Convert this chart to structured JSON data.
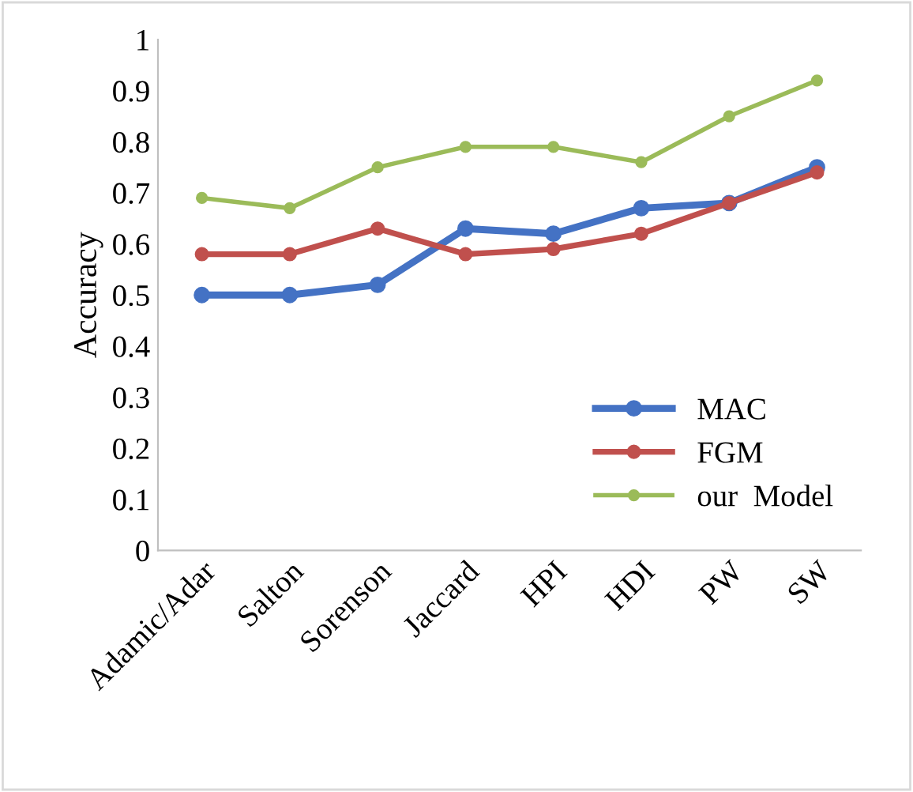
{
  "chart_data": {
    "type": "line",
    "ylabel": "Accuracy",
    "categories": [
      "Adamic/Adar",
      "Salton",
      "Sorenson",
      "Jaccard",
      "HPI",
      "HDI",
      "PW",
      "SW"
    ],
    "series": [
      {
        "name": "MAC",
        "color": "#4472c4",
        "values": [
          0.5,
          0.5,
          0.52,
          0.63,
          0.62,
          0.67,
          0.68,
          0.75
        ]
      },
      {
        "name": "FGM",
        "color": "#c0504d",
        "values": [
          0.58,
          0.58,
          0.63,
          0.58,
          0.59,
          0.62,
          0.68,
          0.74
        ]
      },
      {
        "name": "our  Model",
        "color": "#9bbb59",
        "values": [
          0.69,
          0.67,
          0.75,
          0.79,
          0.79,
          0.76,
          0.85,
          0.92
        ]
      }
    ],
    "ylim": [
      0,
      1
    ],
    "yticks": [
      0,
      0.1,
      0.2,
      0.3,
      0.4,
      0.5,
      0.6,
      0.7,
      0.8,
      0.9,
      1
    ],
    "grid": false,
    "legend": "bottom right",
    "marker": "circle",
    "line_style": "solid"
  }
}
